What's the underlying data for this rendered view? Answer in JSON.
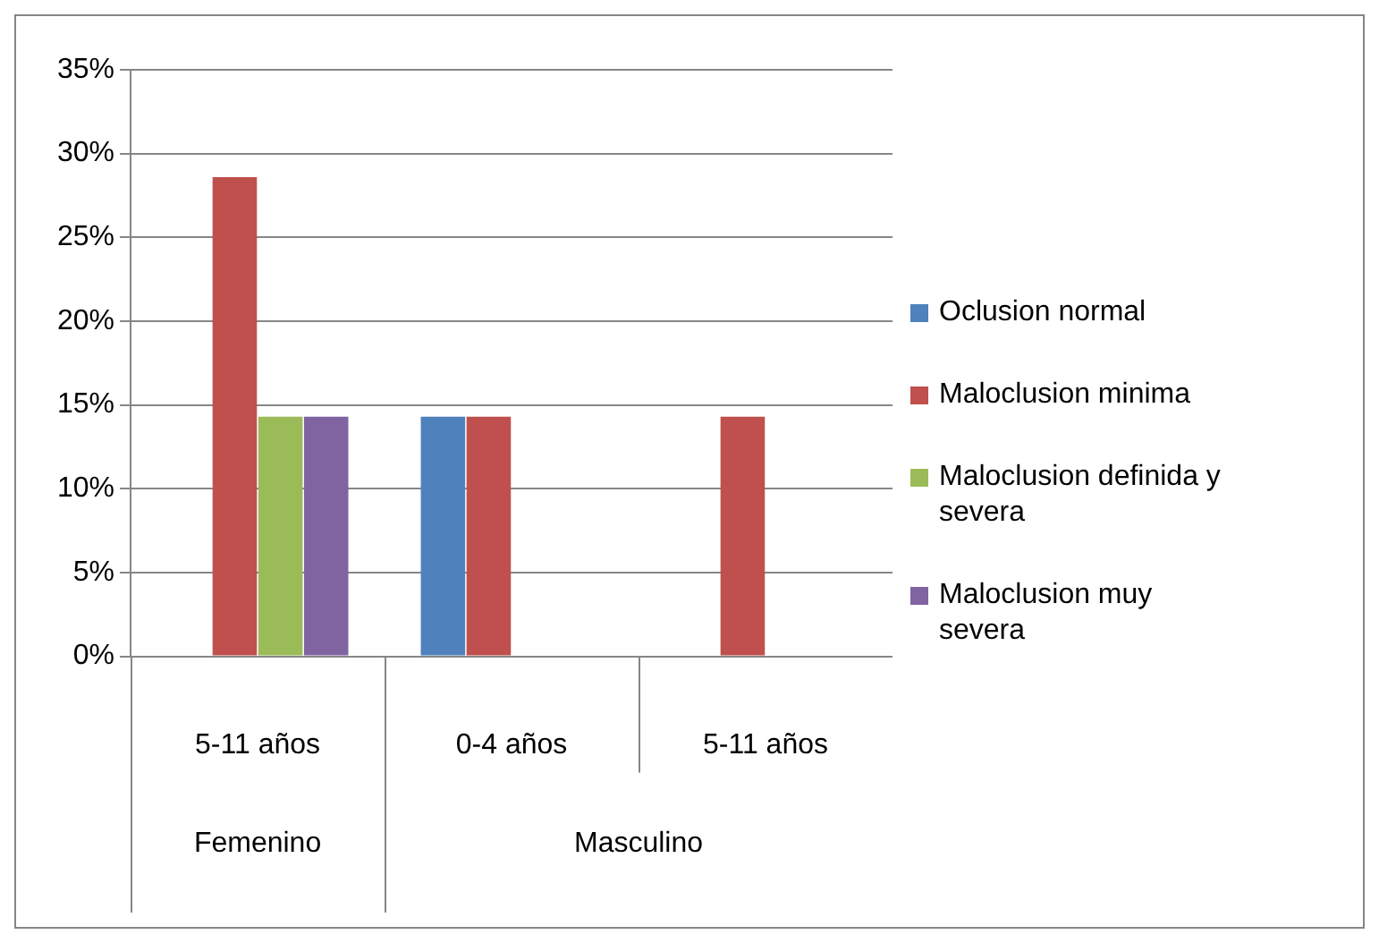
{
  "chart_data": {
    "type": "bar",
    "categories": [
      "5-11 años",
      "0-4 años",
      "5-11 años"
    ],
    "annotations": [
      "Femenino",
      "Masculino"
    ],
    "series": [
      {
        "name": "Oclusion normal",
        "color": "#4f81bd",
        "values": [
          null,
          14.3,
          null
        ]
      },
      {
        "name": "Maloclusion minima",
        "color": "#c0504d",
        "values": [
          28.6,
          14.3,
          14.3
        ]
      },
      {
        "name": "Maloclusion definida y severa",
        "color": "#9bbb59",
        "values": [
          14.3,
          null,
          null
        ]
      },
      {
        "name": "Maloclusion muy severa",
        "color": "#8064a2",
        "values": [
          14.3,
          null,
          null
        ]
      }
    ],
    "ylim": [
      0,
      35
    ],
    "yticks": [
      {
        "value": 0,
        "label": "0%"
      },
      {
        "value": 5,
        "label": "5%"
      },
      {
        "value": 10,
        "label": "10%"
      },
      {
        "value": 15,
        "label": "15%"
      },
      {
        "value": 20,
        "label": "20%"
      },
      {
        "value": 25,
        "label": "25%"
      },
      {
        "value": 30,
        "label": "30%"
      },
      {
        "value": 35,
        "label": "35%"
      }
    ],
    "grid": "y",
    "legend": "right"
  }
}
